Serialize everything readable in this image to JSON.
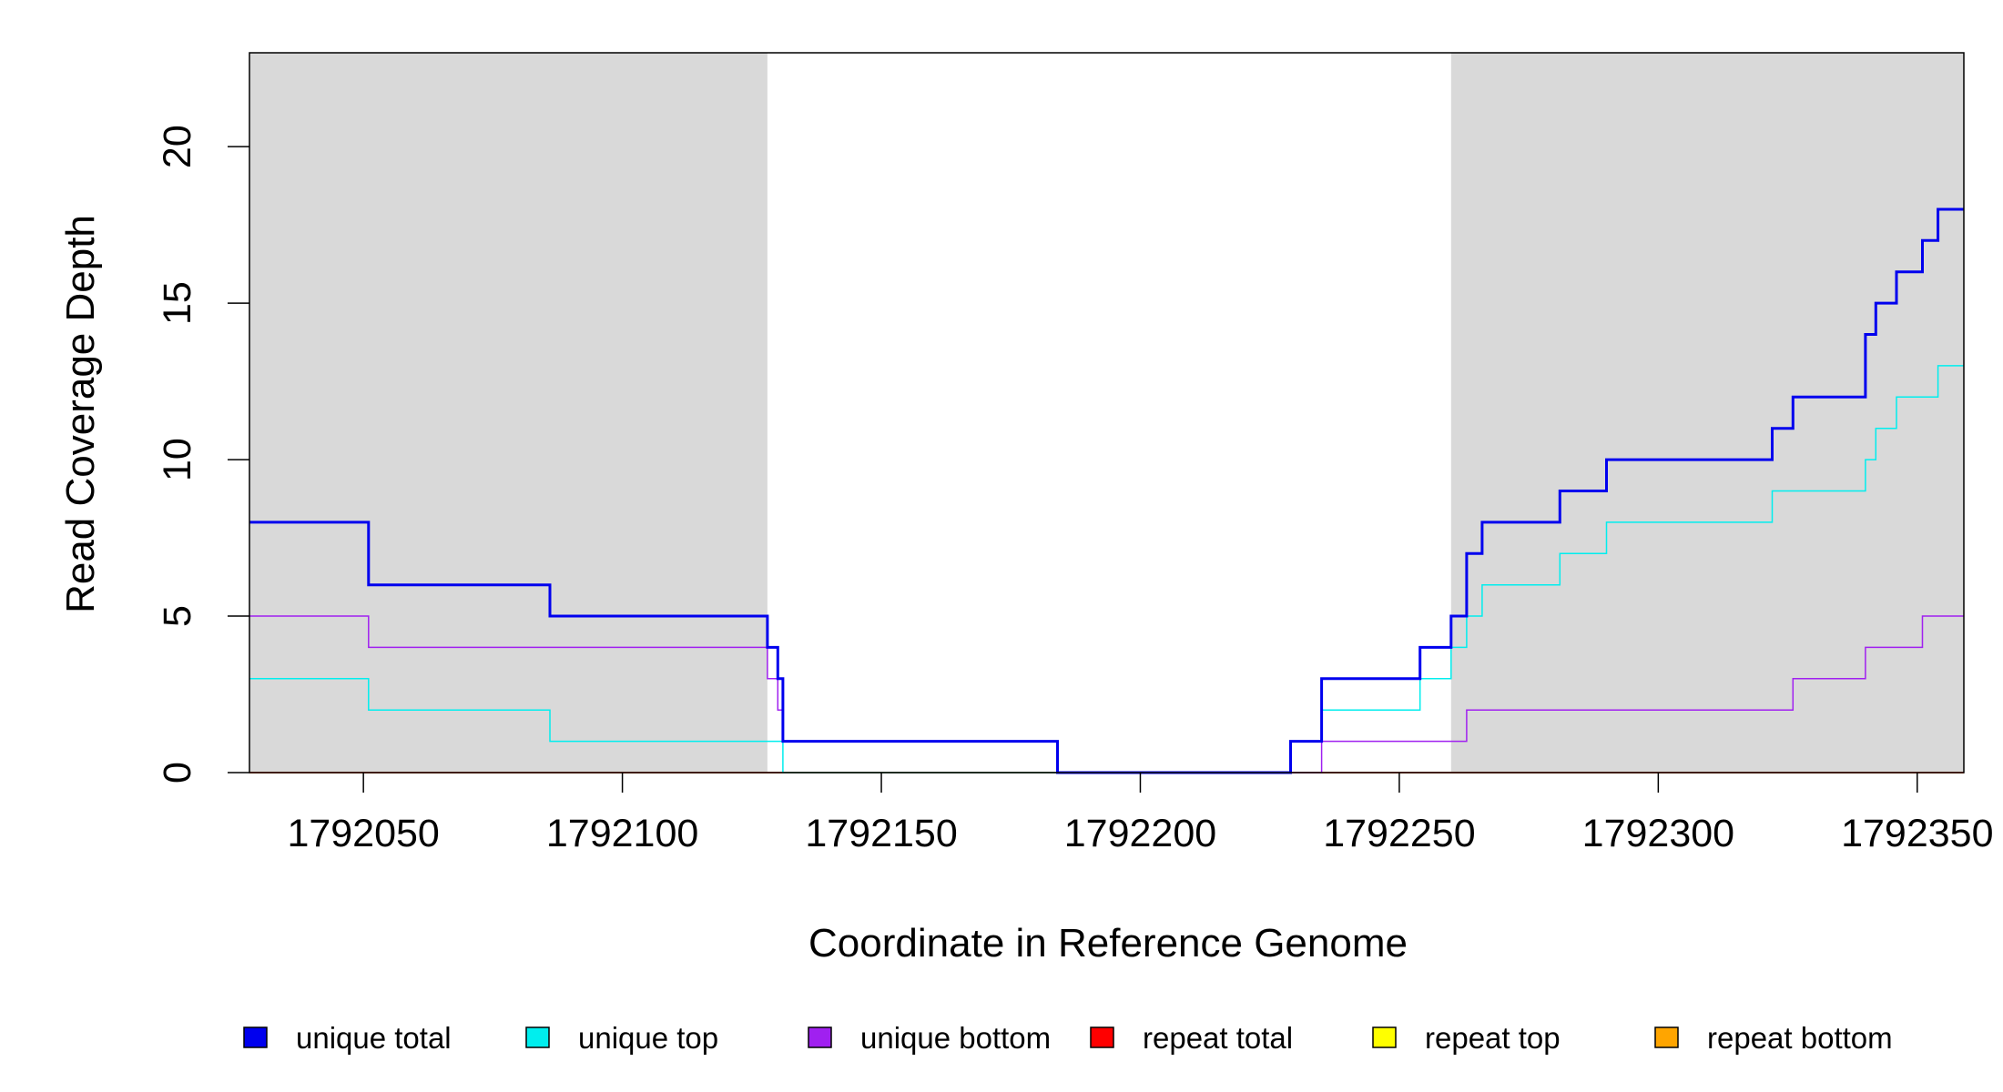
{
  "chart_data": {
    "type": "line",
    "title": "",
    "xlabel": "Coordinate in Reference Genome",
    "ylabel": "Read Coverage Depth",
    "xlim": [
      1792028,
      1792359
    ],
    "ylim": [
      0,
      23
    ],
    "x_ticks": [
      1792050,
      1792100,
      1792150,
      1792200,
      1792250,
      1792300,
      1792350
    ],
    "y_ticks": [
      0,
      5,
      10,
      15,
      20
    ],
    "grid": false,
    "legend_position": "bottom",
    "shaded_regions": [
      {
        "from": 1792028,
        "to": 1792128,
        "color": "#d9d9d9"
      },
      {
        "from": 1792260,
        "to": 1792359,
        "color": "#d9d9d9"
      }
    ],
    "series": [
      {
        "name": "unique total",
        "color": "#0000ee",
        "width": 3,
        "style": "step",
        "x": [
          1792028,
          1792051,
          1792086,
          1792128,
          1792130,
          1792131,
          1792184,
          1792229,
          1792235,
          1792254,
          1792260,
          1792263,
          1792266,
          1792281,
          1792290,
          1792322,
          1792326,
          1792340,
          1792342,
          1792346,
          1792351,
          1792354,
          1792359
        ],
        "y": [
          8,
          6,
          5,
          4,
          3,
          1,
          0,
          1,
          3,
          4,
          5,
          7,
          8,
          9,
          10,
          11,
          12,
          14,
          15,
          16,
          17,
          18,
          18
        ]
      },
      {
        "name": "unique top",
        "color": "#00eeee",
        "width": 1.5,
        "style": "step",
        "x": [
          1792028,
          1792051,
          1792086,
          1792131,
          1792229,
          1792235,
          1792254,
          1792260,
          1792263,
          1792266,
          1792281,
          1792290,
          1792322,
          1792340,
          1792342,
          1792346,
          1792354,
          1792359
        ],
        "y": [
          3,
          2,
          1,
          0,
          1,
          2,
          3,
          4,
          5,
          6,
          7,
          8,
          9,
          10,
          11,
          12,
          13,
          13
        ]
      },
      {
        "name": "unique bottom",
        "color": "#a020f0",
        "width": 1.5,
        "style": "step",
        "x": [
          1792028,
          1792051,
          1792128,
          1792130,
          1792131,
          1792184,
          1792235,
          1792263,
          1792326,
          1792340,
          1792351,
          1792359
        ],
        "y": [
          5,
          4,
          3,
          2,
          1,
          0,
          1,
          2,
          3,
          4,
          5,
          5
        ]
      },
      {
        "name": "repeat total",
        "color": "#ff0000",
        "width": 1.5,
        "style": "step",
        "x": [
          1792028,
          1792359
        ],
        "y": [
          0,
          0
        ]
      },
      {
        "name": "repeat top",
        "color": "#ffff00",
        "width": 1.5,
        "style": "step",
        "x": [
          1792028,
          1792359
        ],
        "y": [
          0,
          0
        ]
      },
      {
        "name": "repeat bottom",
        "color": "#ffa500",
        "width": 1.5,
        "style": "step",
        "x": [
          1792028,
          1792359
        ],
        "y": [
          0,
          0
        ]
      }
    ]
  }
}
